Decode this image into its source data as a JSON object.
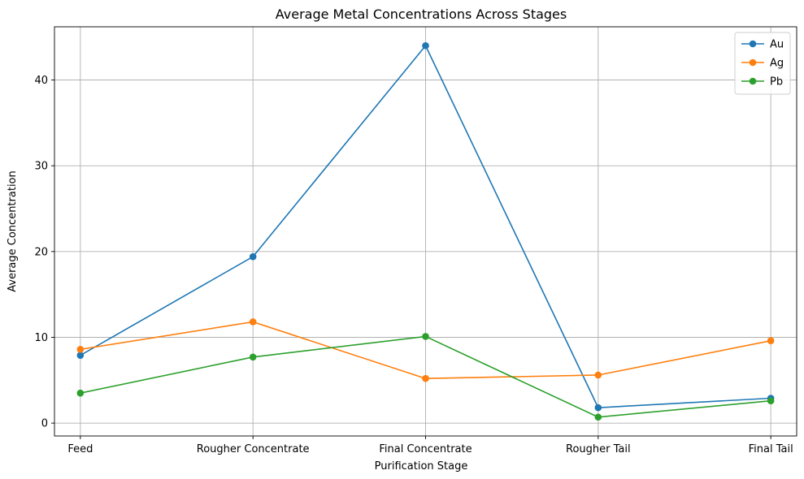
{
  "chart_data": {
    "type": "line",
    "title": "Average Metal Concentrations Across Stages",
    "xlabel": "Purification Stage",
    "ylabel": "Average Concentration",
    "categories": [
      "Feed",
      "Rougher Concentrate",
      "Final Concentrate",
      "Rougher Tail",
      "Final Tail"
    ],
    "ylim": [
      -1.5,
      46.2
    ],
    "yticks": [
      0,
      10,
      20,
      30,
      40
    ],
    "grid": true,
    "legend_position": "top-right",
    "series": [
      {
        "name": "Au",
        "color": "#1f77b4",
        "values": [
          7.9,
          19.4,
          44.0,
          1.8,
          2.9
        ]
      },
      {
        "name": "Ag",
        "color": "#ff7f0e",
        "values": [
          8.6,
          11.8,
          5.2,
          5.6,
          9.6
        ]
      },
      {
        "name": "Pb",
        "color": "#2ca02c",
        "values": [
          3.5,
          7.7,
          10.1,
          0.7,
          2.6
        ]
      }
    ]
  }
}
